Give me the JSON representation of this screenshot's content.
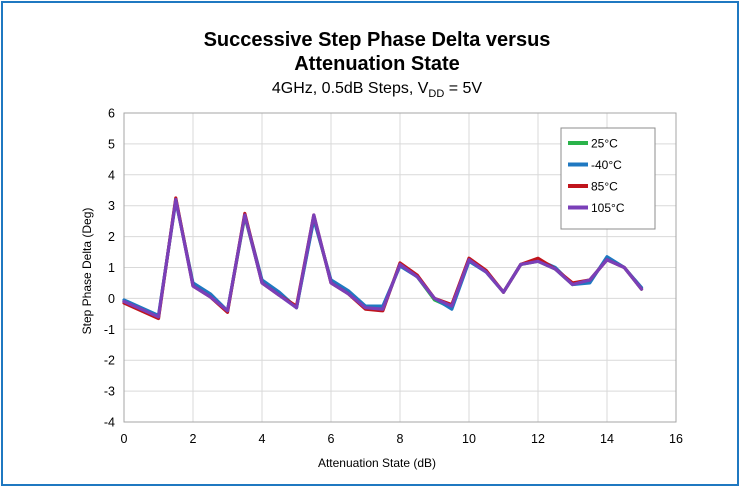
{
  "chart_data": {
    "type": "line",
    "title_line1": "Successive Step Phase Delta versus",
    "title_line2": "Attenuation State",
    "subtitle_prefix": "4GHz, 0.5dB Steps, V",
    "subtitle_subscript": "DD",
    "subtitle_suffix": " = 5V",
    "xlabel": "Attenuation State (dB)",
    "ylabel": "Step Phase Delta (Deg)",
    "xlim": [
      0,
      16
    ],
    "ylim": [
      -4,
      6
    ],
    "xticks": [
      "0",
      "2",
      "4",
      "6",
      "8",
      "10",
      "12",
      "14",
      "16"
    ],
    "yticks": [
      "6",
      "5",
      "4",
      "3",
      "2",
      "1",
      "0",
      "-1",
      "-2",
      "-3",
      "-4"
    ],
    "grid": true,
    "legend_position": "top-right",
    "x": [
      0,
      0.5,
      1,
      1.5,
      2,
      2.5,
      3,
      3.5,
      4,
      4.5,
      5,
      5.5,
      6,
      6.5,
      7,
      7.5,
      8,
      8.5,
      9,
      9.5,
      10,
      10.5,
      11,
      11.5,
      12,
      12.5,
      13,
      13.5,
      14,
      14.5,
      15
    ],
    "series": [
      {
        "name": "25°C",
        "color": "#2ab34a",
        "values": [
          -0.1,
          -0.35,
          -0.6,
          3.2,
          0.45,
          0.1,
          -0.4,
          2.65,
          0.55,
          0.15,
          -0.3,
          2.6,
          0.55,
          0.2,
          -0.3,
          -0.35,
          1.1,
          0.7,
          -0.05,
          -0.3,
          1.25,
          0.85,
          0.2,
          1.1,
          1.2,
          0.95,
          0.45,
          0.55,
          1.3,
          1.0,
          0.3
        ]
      },
      {
        "name": "-40°C",
        "color": "#1f78c1",
        "values": [
          -0.05,
          -0.3,
          -0.55,
          3.15,
          0.5,
          0.15,
          -0.4,
          2.7,
          0.6,
          0.2,
          -0.3,
          2.55,
          0.6,
          0.25,
          -0.25,
          -0.25,
          1.05,
          0.7,
          0.0,
          -0.35,
          1.2,
          0.85,
          0.2,
          1.1,
          1.25,
          1.0,
          0.45,
          0.5,
          1.35,
          1.0,
          0.35
        ]
      },
      {
        "name": "85°C",
        "color": "#c0141c",
        "values": [
          -0.15,
          -0.4,
          -0.65,
          3.25,
          0.4,
          0.05,
          -0.45,
          2.75,
          0.5,
          0.1,
          -0.25,
          2.7,
          0.5,
          0.15,
          -0.35,
          -0.4,
          1.15,
          0.75,
          0.0,
          -0.2,
          1.3,
          0.9,
          0.2,
          1.1,
          1.3,
          0.95,
          0.5,
          0.6,
          1.25,
          1.0,
          0.3
        ]
      },
      {
        "name": "105°C",
        "color": "#7a3fb8",
        "values": [
          -0.1,
          -0.35,
          -0.6,
          3.2,
          0.4,
          0.05,
          -0.4,
          2.7,
          0.5,
          0.1,
          -0.3,
          2.7,
          0.5,
          0.15,
          -0.3,
          -0.35,
          1.1,
          0.7,
          0.0,
          -0.25,
          1.25,
          0.85,
          0.2,
          1.1,
          1.2,
          0.95,
          0.45,
          0.6,
          1.25,
          1.0,
          0.3
        ]
      }
    ]
  }
}
